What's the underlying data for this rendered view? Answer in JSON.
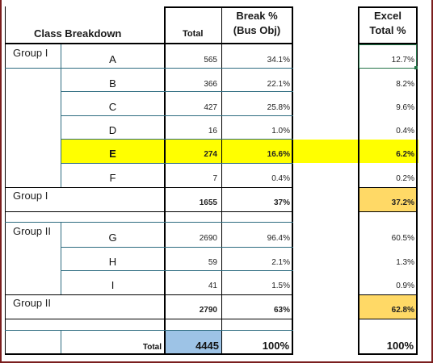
{
  "headers": {
    "class_breakdown": "Class Breakdown",
    "total": "Total",
    "break_pct_line1": "Break %",
    "break_pct_line2": "(Bus Obj)",
    "excel_line1": "Excel",
    "excel_line2": "Total %"
  },
  "rows": [
    {
      "group": "Group I",
      "cls": "A",
      "total": "565",
      "break": "34.1%",
      "excel": "12.7%"
    },
    {
      "group": "",
      "cls": "B",
      "total": "366",
      "break": "22.1%",
      "excel": "8.2%"
    },
    {
      "group": "",
      "cls": "C",
      "total": "427",
      "break": "25.8%",
      "excel": "9.6%"
    },
    {
      "group": "",
      "cls": "D",
      "total": "16",
      "break": "1.0%",
      "excel": "0.4%"
    },
    {
      "group": "",
      "cls": "E",
      "total": "274",
      "break": "16.6%",
      "excel": "6.2%"
    },
    {
      "group": "",
      "cls": "F",
      "total": "7",
      "break": "0.4%",
      "excel": "0.2%"
    },
    {
      "group": "Group I",
      "cls": "",
      "total": "1655",
      "break": "37%",
      "excel": "37.2%"
    },
    {
      "group": "Group II",
      "cls": "G",
      "total": "2690",
      "break": "96.4%",
      "excel": "60.5%"
    },
    {
      "group": "",
      "cls": "H",
      "total": "59",
      "break": "2.1%",
      "excel": "1.3%"
    },
    {
      "group": "",
      "cls": "I",
      "total": "41",
      "break": "1.5%",
      "excel": "0.9%"
    },
    {
      "group": "Group II",
      "cls": "",
      "total": "2790",
      "break": "63%",
      "excel": "62.8%"
    },
    {
      "group": "",
      "cls": "Total",
      "total": "4445",
      "break": "100%",
      "excel": "100%"
    }
  ],
  "colors": {
    "highlight_row": "#ffff00",
    "subtotal_fill": "#ffd966",
    "grand_total_fill": "#9dc3e6",
    "selected_cell_border": "#217346",
    "row_rule": "#ffc000",
    "frame": "#7a1e1e"
  }
}
